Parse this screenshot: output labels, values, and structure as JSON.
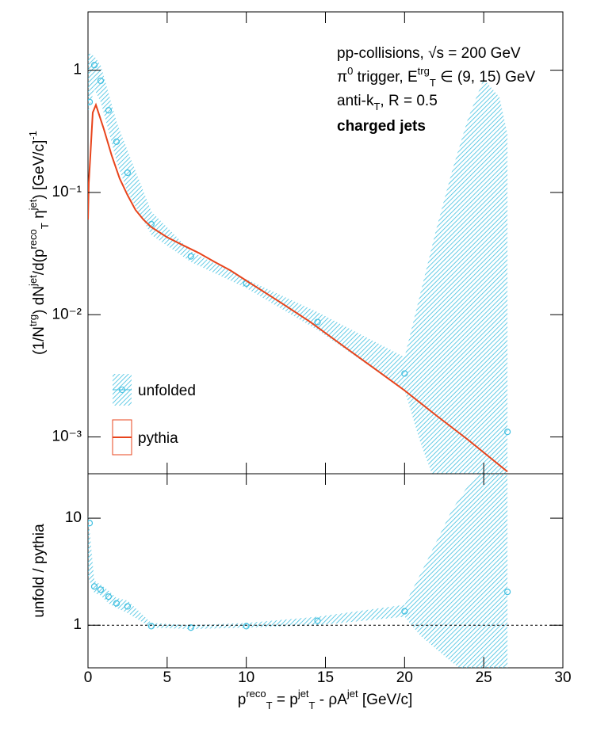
{
  "chart_data": [
    {
      "type": "line",
      "log_y": true,
      "xlim": [
        0,
        30
      ],
      "ylim": [
        0.0005,
        3
      ],
      "xticks": [
        0,
        5,
        10,
        15,
        20,
        25,
        30
      ],
      "yticks": [
        {
          "value": 0.001,
          "label": "10⁻³"
        },
        {
          "value": 0.01,
          "label": "10⁻²"
        },
        {
          "value": 0.1,
          "label": "10⁻¹"
        },
        1
      ],
      "ylabel": [
        {
          "t": "(1/N"
        },
        {
          "t": "trg",
          "s": "sup"
        },
        {
          "t": ") dN"
        },
        {
          "t": "jet",
          "s": "sup"
        },
        {
          "t": "/d(p"
        },
        {
          "t": "reco",
          "s": "sup"
        },
        {
          "t": "T",
          "s": "sub"
        },
        {
          "t": " η"
        },
        {
          "t": "jet",
          "s": "sup"
        },
        {
          "t": ") [GeV/c]"
        },
        {
          "t": "-1",
          "s": "sup"
        }
      ],
      "annotations": [
        [
          {
            "t": "pp-collisions, √s = 200 GeV"
          }
        ],
        [
          {
            "t": "π"
          },
          {
            "t": "0",
            "s": "sup"
          },
          {
            "t": " trigger, E"
          },
          {
            "t": "trg",
            "s": "sup"
          },
          {
            "t": "T",
            "s": "sub"
          },
          {
            "t": " ∈ (9, 15) GeV"
          }
        ],
        [
          {
            "t": "anti-k"
          },
          {
            "t": "T",
            "s": "sub"
          },
          {
            "t": ", R = 0.5"
          }
        ],
        [
          {
            "t": "charged jets",
            "w": "bold"
          }
        ]
      ],
      "series": [
        {
          "name": "unfolded",
          "color": "#3fbfe0",
          "style": "points-band",
          "x": [
            0.1,
            0.4,
            0.8,
            1.3,
            1.8,
            2.5,
            4,
            6.5,
            10,
            14.5,
            20,
            26.5
          ],
          "values": [
            0.55,
            1.1,
            0.82,
            0.47,
            0.26,
            0.145,
            0.055,
            0.03,
            0.018,
            0.0087,
            0.0033,
            0.0011
          ],
          "band": {
            "x": [
              0,
              0.4,
              0.8,
              1.3,
              1.8,
              2.5,
              4,
              6.5,
              10,
              14.5,
              20,
              21,
              22,
              23,
              24,
              25,
              26,
              26.5
            ],
            "high": [
              1.4,
              1.3,
              1.1,
              0.65,
              0.38,
              0.22,
              0.07,
              0.033,
              0.0195,
              0.0105,
              0.0045,
              0.015,
              0.05,
              0.15,
              0.4,
              0.85,
              0.6,
              0.3
            ],
            "low": [
              0.45,
              0.7,
              0.55,
              0.32,
              0.18,
              0.1,
              0.045,
              0.027,
              0.0165,
              0.0075,
              0.0024,
              0.0009,
              0.0004,
              0.0002,
              0.0001,
              0.0001,
              0.0001,
              0.0001
            ]
          }
        },
        {
          "name": "pythia",
          "color": "#e8441c",
          "style": "line",
          "x": [
            0,
            0.05,
            0.15,
            0.3,
            0.5,
            1,
            1.5,
            2,
            2.5,
            3,
            3.5,
            4,
            5,
            6,
            7,
            8,
            9,
            10,
            12,
            14,
            16,
            18,
            20,
            22,
            24,
            26.5
          ],
          "values": [
            0.06,
            0.12,
            0.2,
            0.45,
            0.52,
            0.33,
            0.2,
            0.13,
            0.095,
            0.072,
            0.06,
            0.052,
            0.043,
            0.037,
            0.032,
            0.027,
            0.023,
            0.019,
            0.013,
            0.0088,
            0.0057,
            0.0037,
            0.0024,
            0.0015,
            0.00095,
            0.00052
          ]
        }
      ]
    },
    {
      "type": "line",
      "log_y": true,
      "xlim": [
        0,
        30
      ],
      "ylim": [
        0.4,
        26
      ],
      "xticks": [
        0,
        5,
        10,
        15,
        20,
        25,
        30
      ],
      "yticks": [
        1,
        10
      ],
      "xlabel": [
        {
          "t": "p"
        },
        {
          "t": "reco",
          "s": "sup"
        },
        {
          "t": "T",
          "s": "sub"
        },
        {
          "t": " = p"
        },
        {
          "t": "jet",
          "s": "sup"
        },
        {
          "t": "T",
          "s": "sub"
        },
        {
          "t": " - ρA"
        },
        {
          "t": "jet",
          "s": "sup"
        },
        {
          "t": " [GeV/c]"
        }
      ],
      "ylabel": [
        {
          "t": "unfold / pythia"
        }
      ],
      "reference_line": 1,
      "series": [
        {
          "color": "#3fbfe0",
          "style": "points-band",
          "x": [
            0.1,
            0.4,
            0.8,
            1.3,
            1.8,
            2.5,
            4,
            6.5,
            10,
            14.5,
            20,
            26.5
          ],
          "values": [
            9,
            2.3,
            2.15,
            1.85,
            1.6,
            1.5,
            0.98,
            0.95,
            0.98,
            1.1,
            1.35,
            2.05
          ],
          "band": {
            "x": [
              0,
              0.4,
              0.8,
              1.3,
              1.8,
              2.5,
              4,
              6.5,
              10,
              14.5,
              20,
              21,
              22,
              23,
              24,
              25,
              26,
              26.5
            ],
            "high": [
              11,
              2.6,
              2.4,
              2.1,
              1.8,
              1.7,
              1.05,
              1.0,
              1.05,
              1.2,
              1.55,
              3,
              6,
              12,
              20,
              30,
              30,
              25
            ],
            "low": [
              2.8,
              2.0,
              1.9,
              1.6,
              1.45,
              1.3,
              0.95,
              0.92,
              0.95,
              1.0,
              1.2,
              0.8,
              0.6,
              0.45,
              0.35,
              0.3,
              0.3,
              0.3
            ]
          }
        }
      ]
    }
  ]
}
